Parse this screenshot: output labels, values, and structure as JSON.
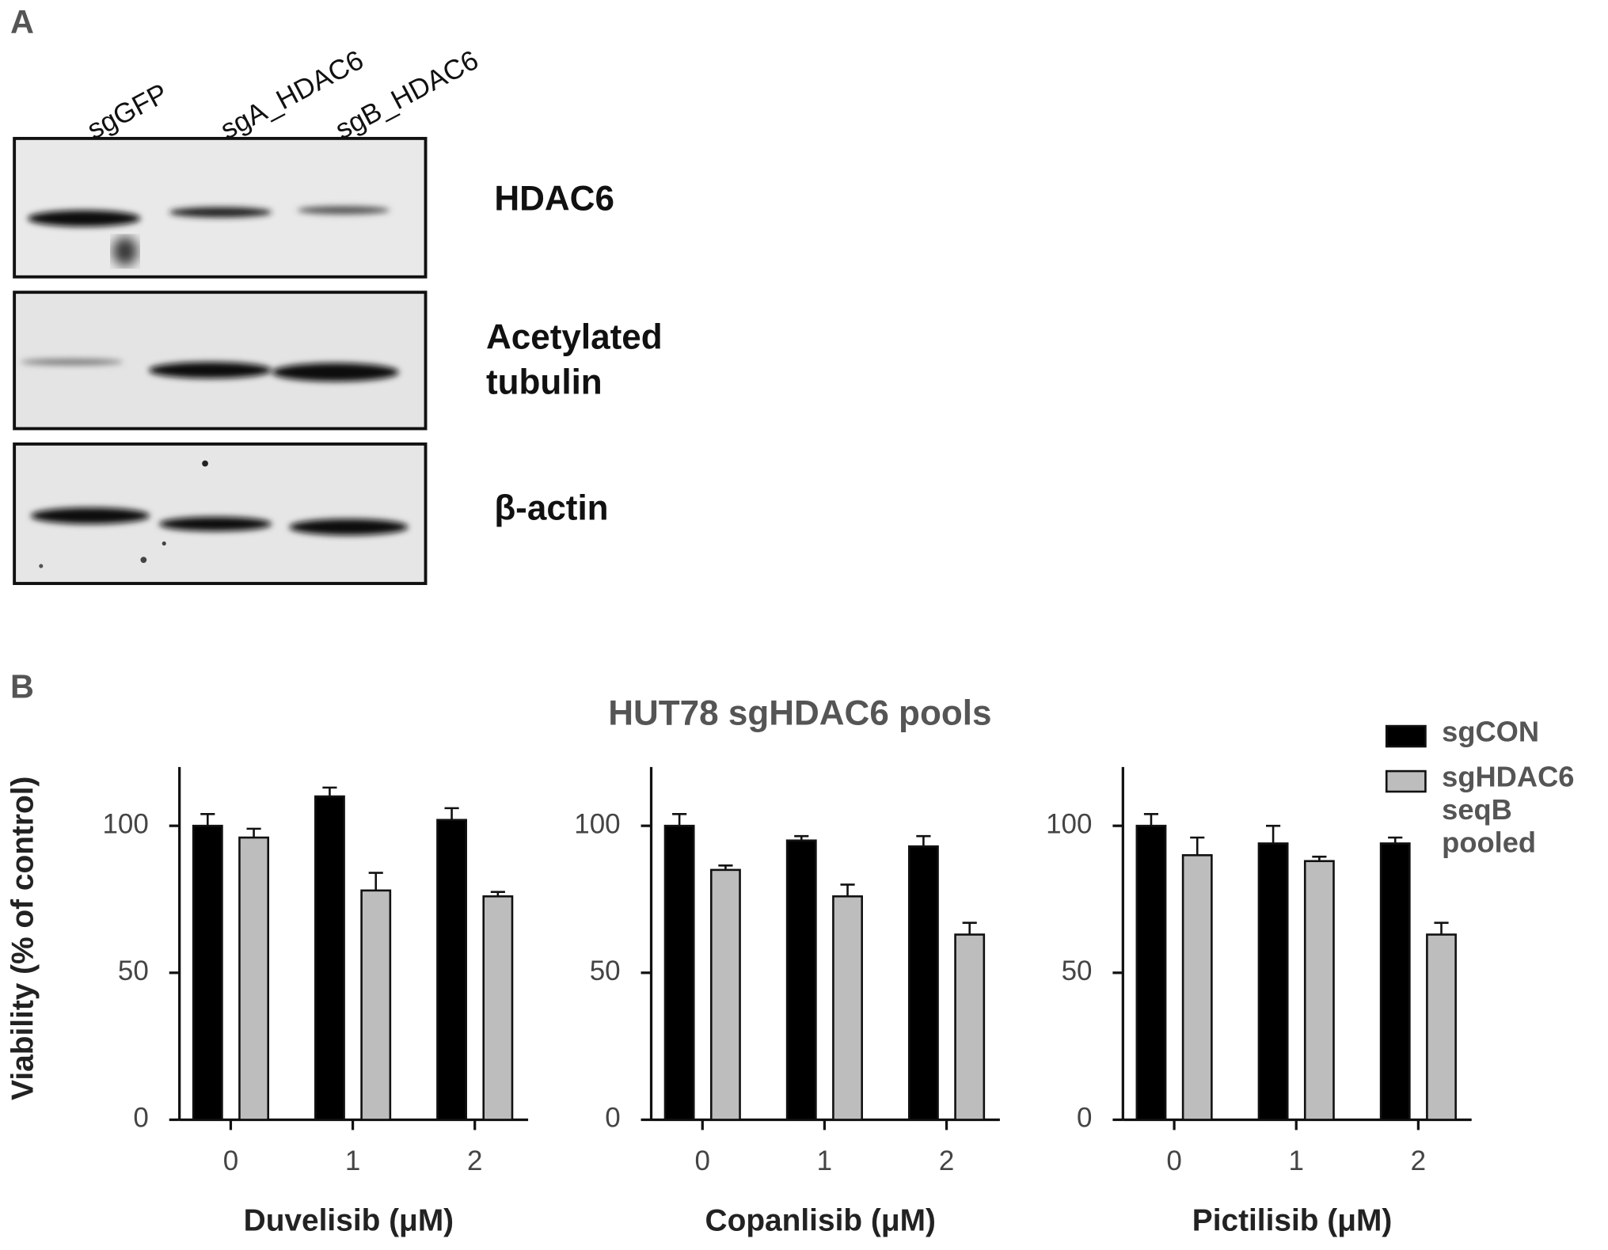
{
  "panel_a": {
    "label": "A",
    "lanes": [
      "sgGFP",
      "sgA_HDAC6",
      "sgB_HDAC6"
    ],
    "blots": [
      "HDAC6",
      "Acetylated tubulin",
      "β-actin"
    ]
  },
  "panel_b": {
    "label": "B",
    "title": "HUT78 sgHDAC6 pools"
  },
  "chart_data": [
    {
      "type": "bar",
      "ylabel": "Viability (% of control)",
      "xlabel": "Duvelisib (μM)",
      "categories": [
        "0",
        "1",
        "2"
      ],
      "series": [
        {
          "color": "#000000",
          "values": [
            100,
            110,
            102
          ],
          "errors": [
            4,
            3,
            4
          ]
        },
        {
          "color": "#bdbdbd",
          "values": [
            96,
            78,
            76
          ],
          "errors": [
            3,
            6,
            1.5
          ]
        }
      ],
      "ylim": [
        0,
        120
      ],
      "yticks": [
        0,
        50,
        100
      ]
    },
    {
      "type": "bar",
      "xlabel": "Copanlisib (μM)",
      "categories": [
        "0",
        "1",
        "2"
      ],
      "series": [
        {
          "color": "#000000",
          "values": [
            100,
            95,
            93
          ],
          "errors": [
            4,
            1.5,
            3.5
          ]
        },
        {
          "color": "#bdbdbd",
          "values": [
            85,
            76,
            63
          ],
          "errors": [
            1.5,
            4,
            4
          ]
        }
      ],
      "ylim": [
        0,
        120
      ],
      "yticks": [
        0,
        50,
        100
      ]
    },
    {
      "type": "bar",
      "xlabel": "Pictilisib (μM)",
      "categories": [
        "0",
        "1",
        "2"
      ],
      "series": [
        {
          "name": "sgCON",
          "color": "#000000",
          "values": [
            100,
            94,
            94
          ],
          "errors": [
            4,
            6,
            2
          ]
        },
        {
          "name": "sgHDAC6 seqB pooled",
          "color": "#bdbdbd",
          "values": [
            90,
            88,
            63
          ],
          "errors": [
            6,
            1.5,
            4
          ]
        }
      ],
      "ylim": [
        0,
        120
      ],
      "yticks": [
        0,
        50,
        100
      ]
    }
  ]
}
